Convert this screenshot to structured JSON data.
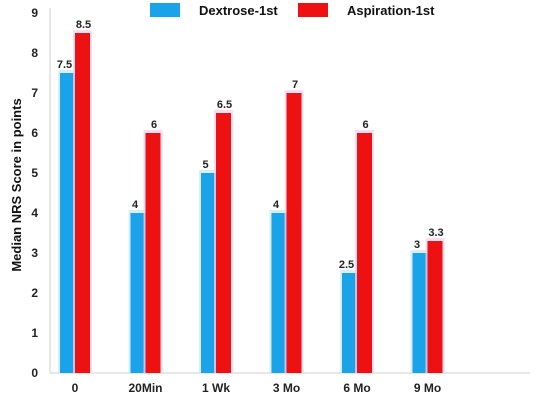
{
  "chart_data": {
    "type": "bar",
    "title": "",
    "xlabel": "",
    "ylabel": "Median NRS Score  in points",
    "ylim": [
      0,
      9
    ],
    "yticks": [
      0,
      1,
      2,
      3,
      4,
      5,
      6,
      7,
      8,
      9
    ],
    "grid": false,
    "legend_position": "top",
    "categories": [
      "0",
      "20Min",
      "1 Wk",
      "3 Mo",
      "6 Mo",
      "9 Mo"
    ],
    "series": [
      {
        "name": "Dextrose-1st",
        "color": "#1aa3e8",
        "values": [
          7.5,
          4,
          5,
          4,
          2.5,
          3
        ],
        "labels": [
          "7.5",
          "4",
          "5",
          "4",
          "2.5",
          "3"
        ]
      },
      {
        "name": "Aspiration-1st",
        "color": "#ee1111",
        "values": [
          8.5,
          6,
          6.5,
          7,
          6,
          3.3
        ],
        "labels": [
          "8.5",
          "6",
          "6.5",
          "7",
          "6",
          "3.3"
        ]
      }
    ]
  }
}
